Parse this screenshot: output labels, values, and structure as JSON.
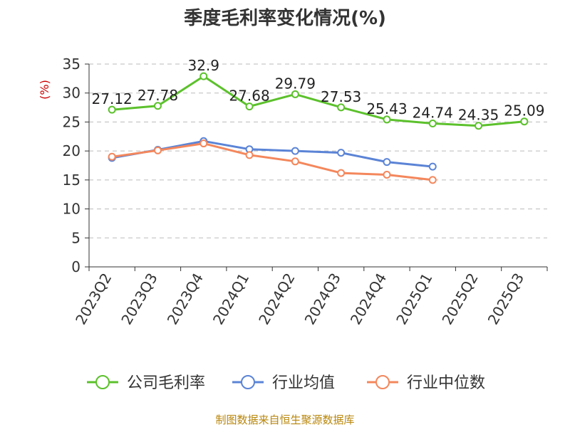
{
  "title": "季度毛利率变化情况(%)",
  "unit_label": "(%)",
  "source": "制图数据来自恒生聚源数据库",
  "colors": {
    "company": "#5cc12c",
    "industry_avg": "#5b84d6",
    "industry_median": "#f4875c",
    "grid": "#bbbbbb",
    "axis": "#333333"
  },
  "chart_data": {
    "type": "line",
    "title": "季度毛利率变化情况(%)",
    "ylabel": "(%)",
    "xlabel": "",
    "categories": [
      "2023Q2",
      "2023Q3",
      "2023Q4",
      "2024Q1",
      "2024Q2",
      "2024Q3",
      "2024Q4",
      "2025Q1",
      "2025Q2",
      "2025Q3"
    ],
    "ylim": [
      0,
      35
    ],
    "yticks": [
      0,
      5,
      10,
      15,
      20,
      25,
      30,
      35
    ],
    "grid": true,
    "legend_position": "bottom",
    "series": [
      {
        "name": "公司毛利率",
        "color_key": "company",
        "values": [
          27.12,
          27.78,
          32.9,
          27.68,
          29.79,
          27.53,
          25.43,
          24.74,
          24.35,
          25.09
        ],
        "labels": [
          "27.12",
          "27.78",
          "32.9",
          "27.68",
          "29.79",
          "27.53",
          "25.43",
          "24.74",
          "24.35",
          "25.09"
        ]
      },
      {
        "name": "行业均值",
        "color_key": "industry_avg",
        "values": [
          18.8,
          20.2,
          21.7,
          20.3,
          20.0,
          19.7,
          18.1,
          17.3,
          null,
          null
        ]
      },
      {
        "name": "行业中位数",
        "color_key": "industry_median",
        "values": [
          19.0,
          20.1,
          21.3,
          19.3,
          18.2,
          16.2,
          15.9,
          15.0,
          null,
          null
        ]
      }
    ]
  }
}
